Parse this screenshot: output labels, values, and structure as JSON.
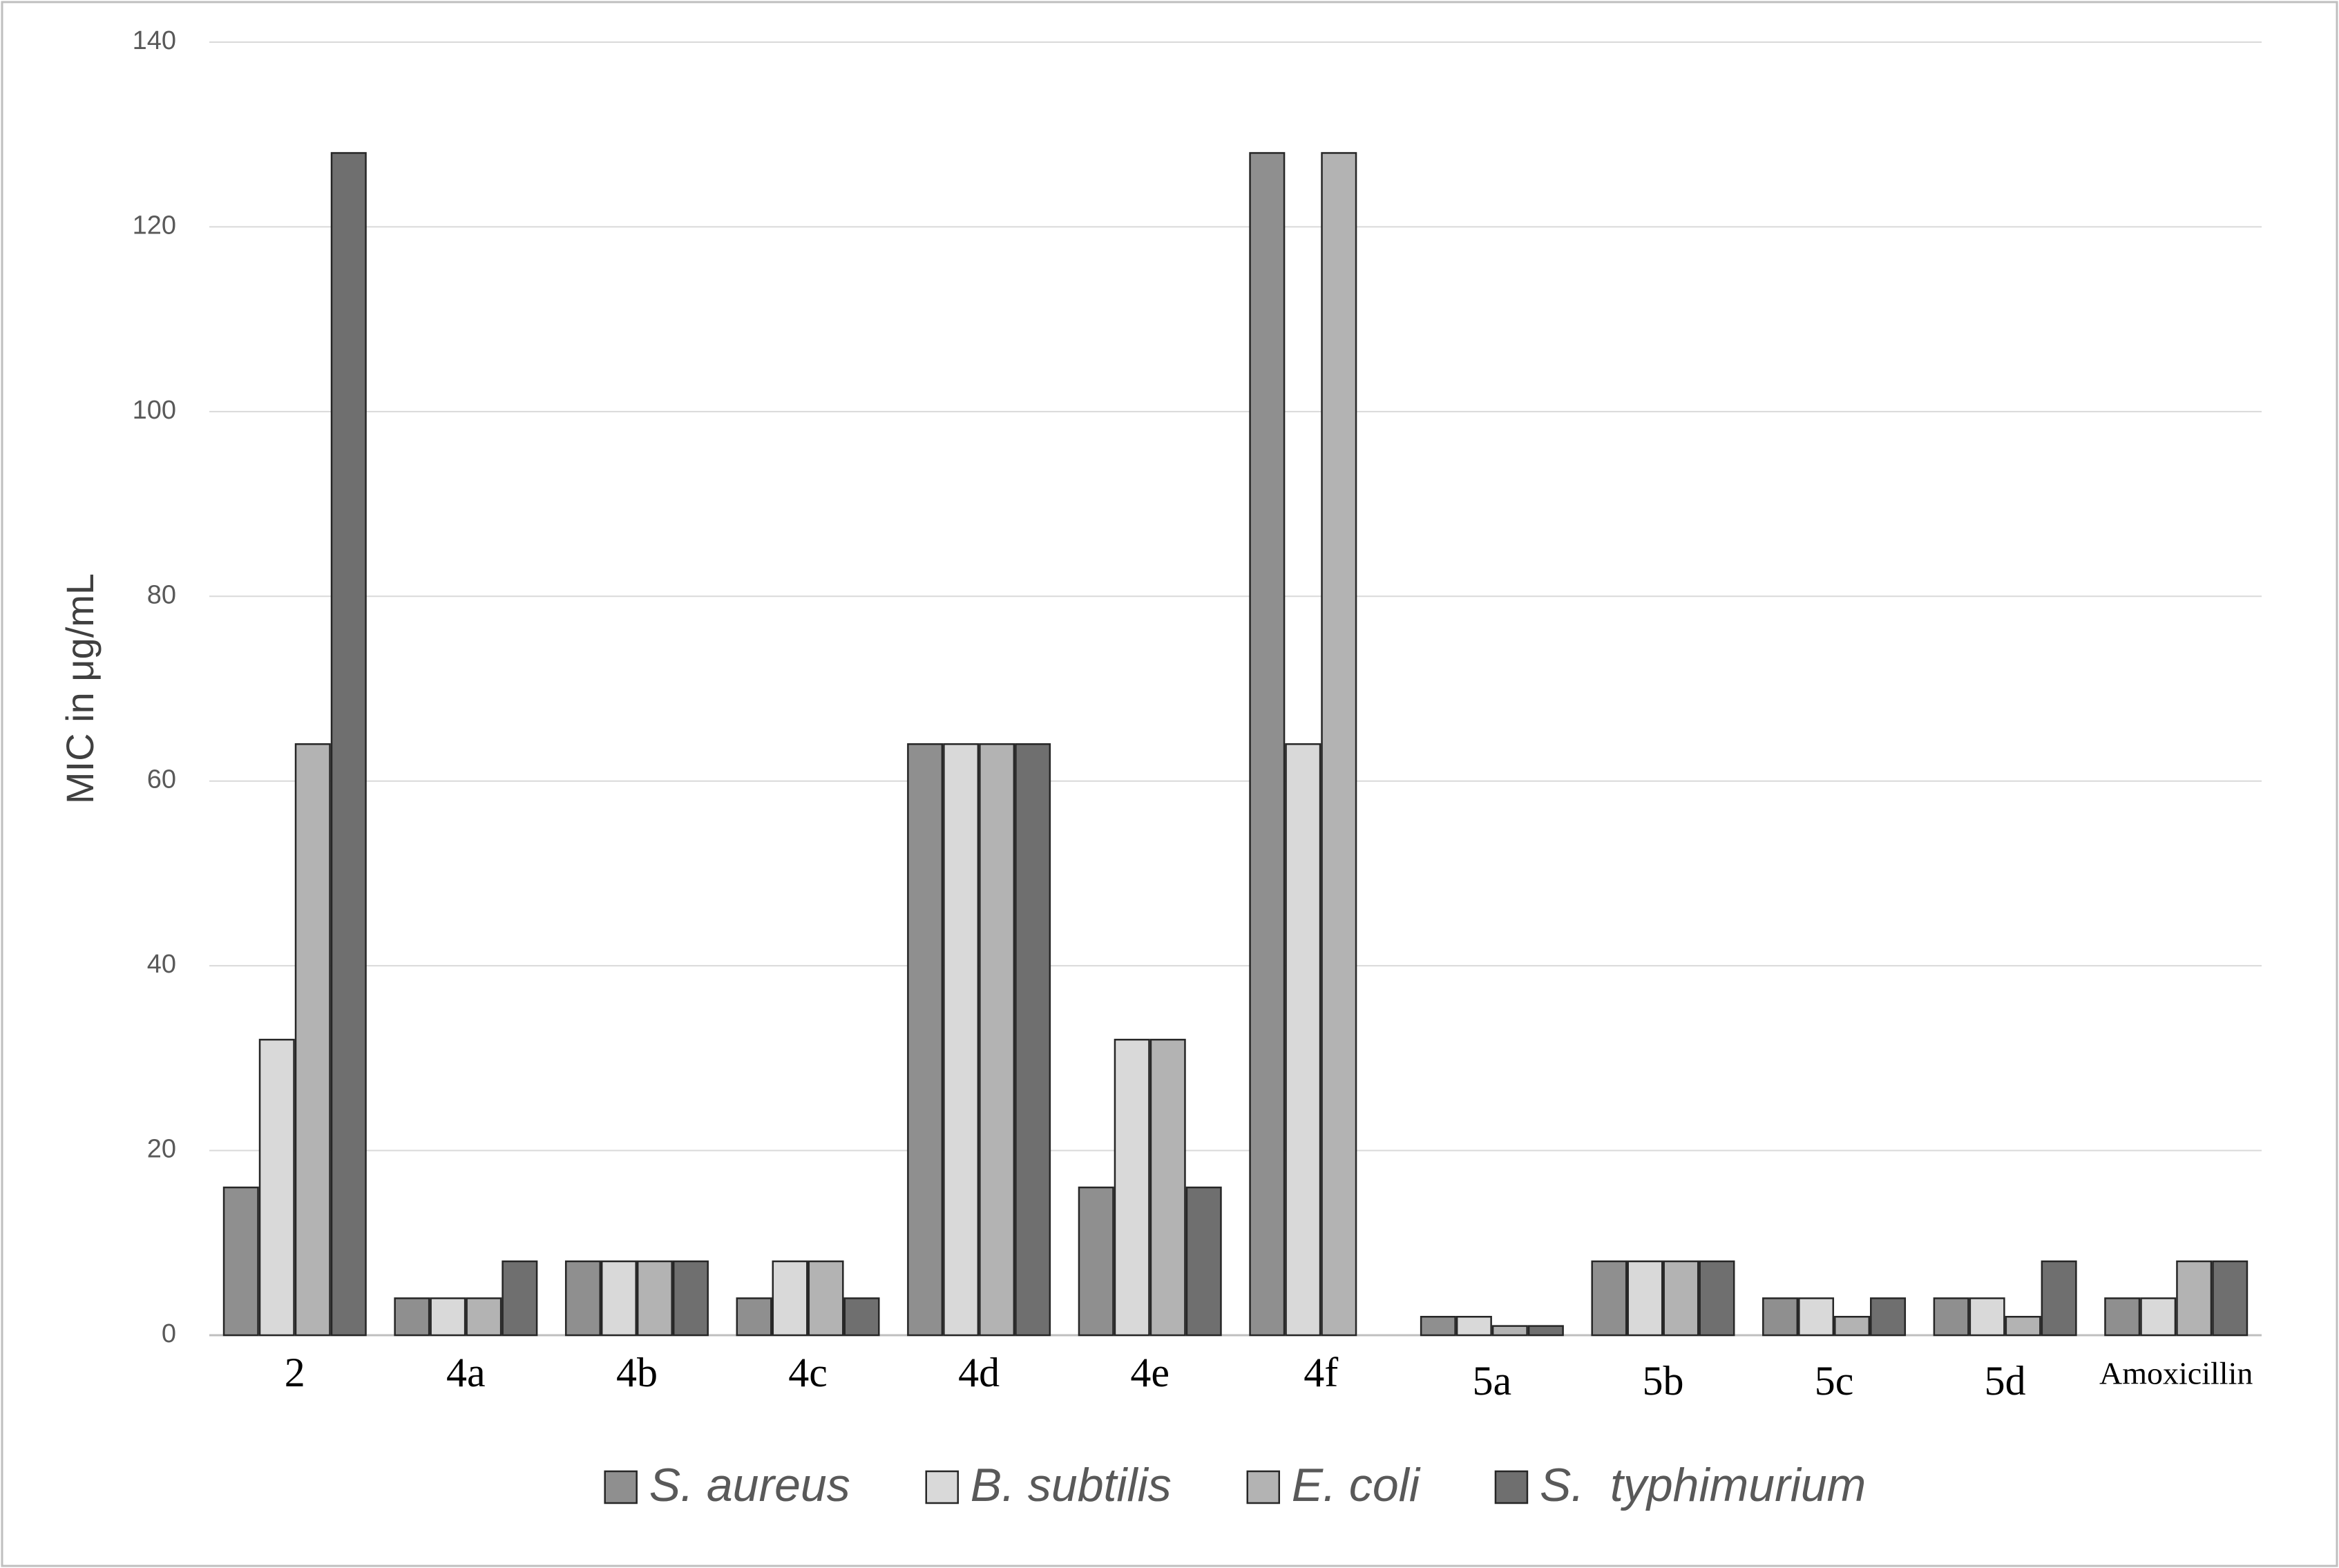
{
  "chart_data": {
    "type": "bar",
    "ylabel": "MIC in μg/mL",
    "categories": [
      "2",
      "4a",
      "4b",
      "4c",
      "4d",
      "4e",
      "4f",
      "5a",
      "5b",
      "5c",
      "5d",
      "Amoxicillin"
    ],
    "series": [
      {
        "name": "S. aureus",
        "color": "#8f8f8f",
        "values": [
          16,
          4,
          8,
          4,
          64,
          16,
          128,
          2,
          8,
          4,
          4,
          4
        ]
      },
      {
        "name": "B. subtilis",
        "color": "#d9d9d9",
        "values": [
          32,
          4,
          8,
          8,
          64,
          32,
          64,
          2,
          8,
          4,
          4,
          4
        ]
      },
      {
        "name": "E. coli",
        "color": "#b3b3b3",
        "values": [
          64,
          4,
          8,
          8,
          64,
          32,
          128,
          1,
          8,
          2,
          2,
          8
        ]
      },
      {
        "name": "S.  typhimurium",
        "color": "#6f6f6f",
        "values": [
          128,
          8,
          8,
          4,
          64,
          16,
          null,
          1,
          8,
          4,
          8,
          8
        ]
      }
    ],
    "ylim": [
      0,
      140
    ],
    "yticks": [
      0,
      20,
      40,
      60,
      80,
      100,
      120,
      140
    ],
    "grid": true,
    "legend": "bottom"
  }
}
